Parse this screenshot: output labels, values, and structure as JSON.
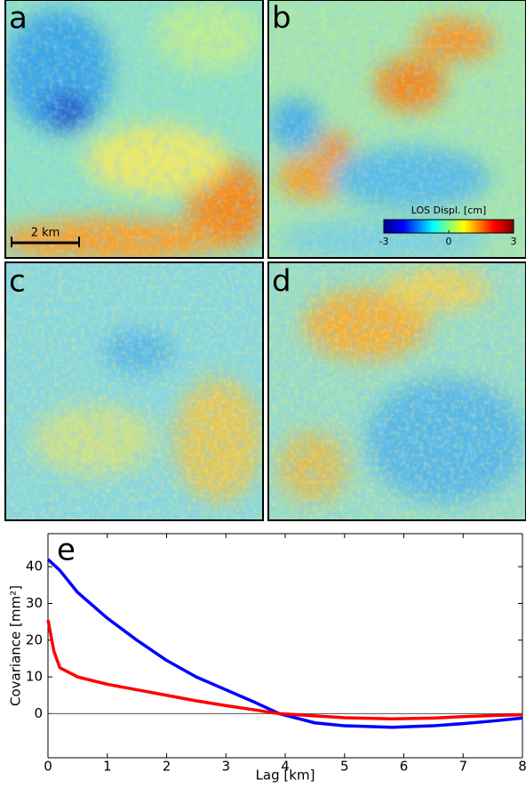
{
  "panels": [
    {
      "label": "a"
    },
    {
      "label": "b"
    },
    {
      "label": "c"
    },
    {
      "label": "d"
    }
  ],
  "scale_bar": {
    "label": "2 km"
  },
  "colorbar": {
    "label": "LOS Displ. [cm]",
    "lim": [
      -3,
      3
    ],
    "ticks": [
      -3,
      0,
      3
    ]
  },
  "chart_data": {
    "type": "line",
    "panel_label": "e",
    "xlabel": "Lag [km]",
    "ylabel": "Covariance [mm²]",
    "x": [
      0,
      0.1,
      0.2,
      0.5,
      1,
      1.5,
      2,
      2.5,
      3,
      3.5,
      3.9,
      4.5,
      5,
      5.8,
      6.5,
      7,
      7.5,
      8
    ],
    "series": [
      {
        "color": "#0000ff",
        "values": [
          42,
          40.5,
          39,
          33,
          26,
          20,
          14.5,
          10,
          6.5,
          3,
          0,
          -2.5,
          -3.3,
          -3.7,
          -3.3,
          -2.7,
          -2,
          -1.2
        ]
      },
      {
        "color": "#ff0000",
        "values": [
          25.5,
          17,
          12.5,
          10,
          8,
          6.5,
          5,
          3.5,
          2.2,
          1,
          0,
          -0.6,
          -1.1,
          -1.4,
          -1.2,
          -0.8,
          -0.5,
          -0.3
        ]
      }
    ],
    "xlim": [
      0,
      8
    ],
    "ylim": [
      -12,
      49
    ],
    "xticks": [
      0,
      1,
      2,
      3,
      4,
      5,
      6,
      7,
      8
    ],
    "yticks": [
      0,
      10,
      20,
      30,
      40
    ]
  }
}
